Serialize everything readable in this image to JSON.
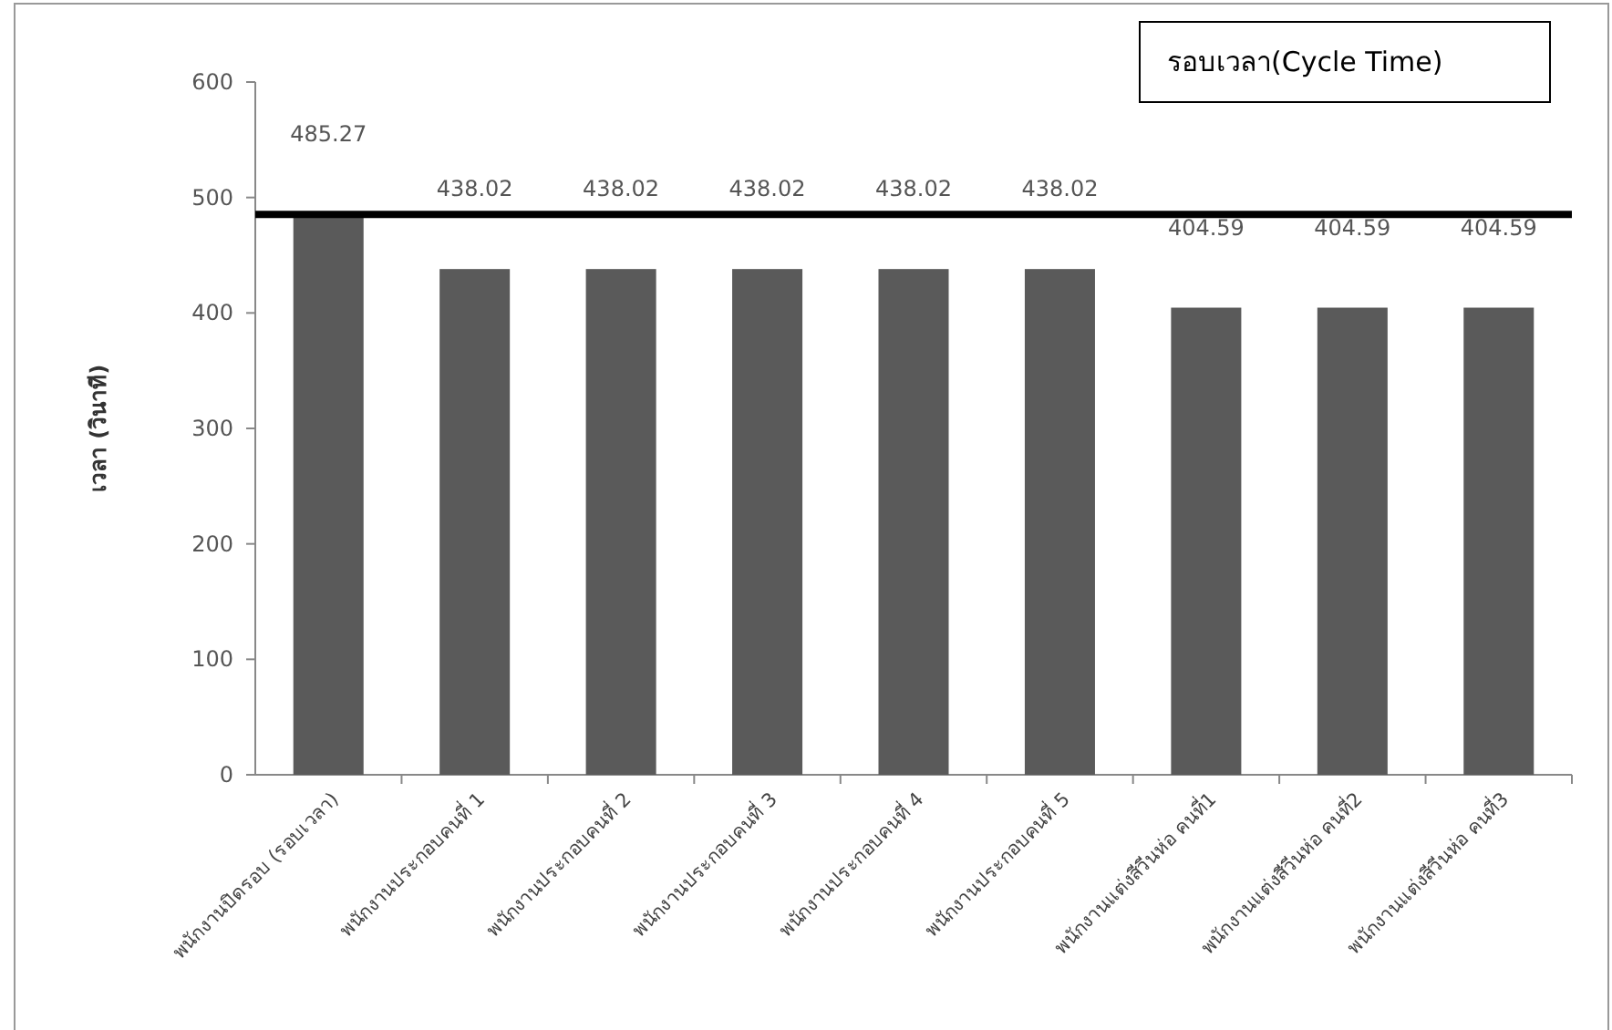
{
  "chart_data": {
    "type": "bar",
    "ylabel": "เวลา (วินาที)",
    "categories": [
      "พนักงานปิดรอบ (รอบเวลา)",
      "พนักงานประกอบคนที่ 1",
      "พนักงานประกอบคนที่ 2",
      "พนักงานประกอบคนที่ 3",
      "พนักงานประกอบคนที่ 4",
      "พนักงานประกอบคนที่ 5",
      "พนักงานแต่งสีวีนห่อ คนที่1",
      "พนักงานแต่งสีวีนห่อ คนที่2",
      "พนักงานแต่งสีวีนห่อ คนที่3"
    ],
    "values": [
      485.27,
      438.02,
      438.02,
      438.02,
      438.02,
      438.02,
      404.59,
      404.59,
      404.59
    ],
    "data_labels": true,
    "color": "#5a5a5a",
    "ylim": [
      0,
      600
    ],
    "yticks": [
      0,
      100,
      200,
      300,
      400,
      500,
      600
    ],
    "grid": false,
    "ref_lines": [
      {
        "axis": "y",
        "value": 485.27,
        "label": "รอบเวลา(Cycle Time)",
        "color": "#000000"
      }
    ]
  }
}
